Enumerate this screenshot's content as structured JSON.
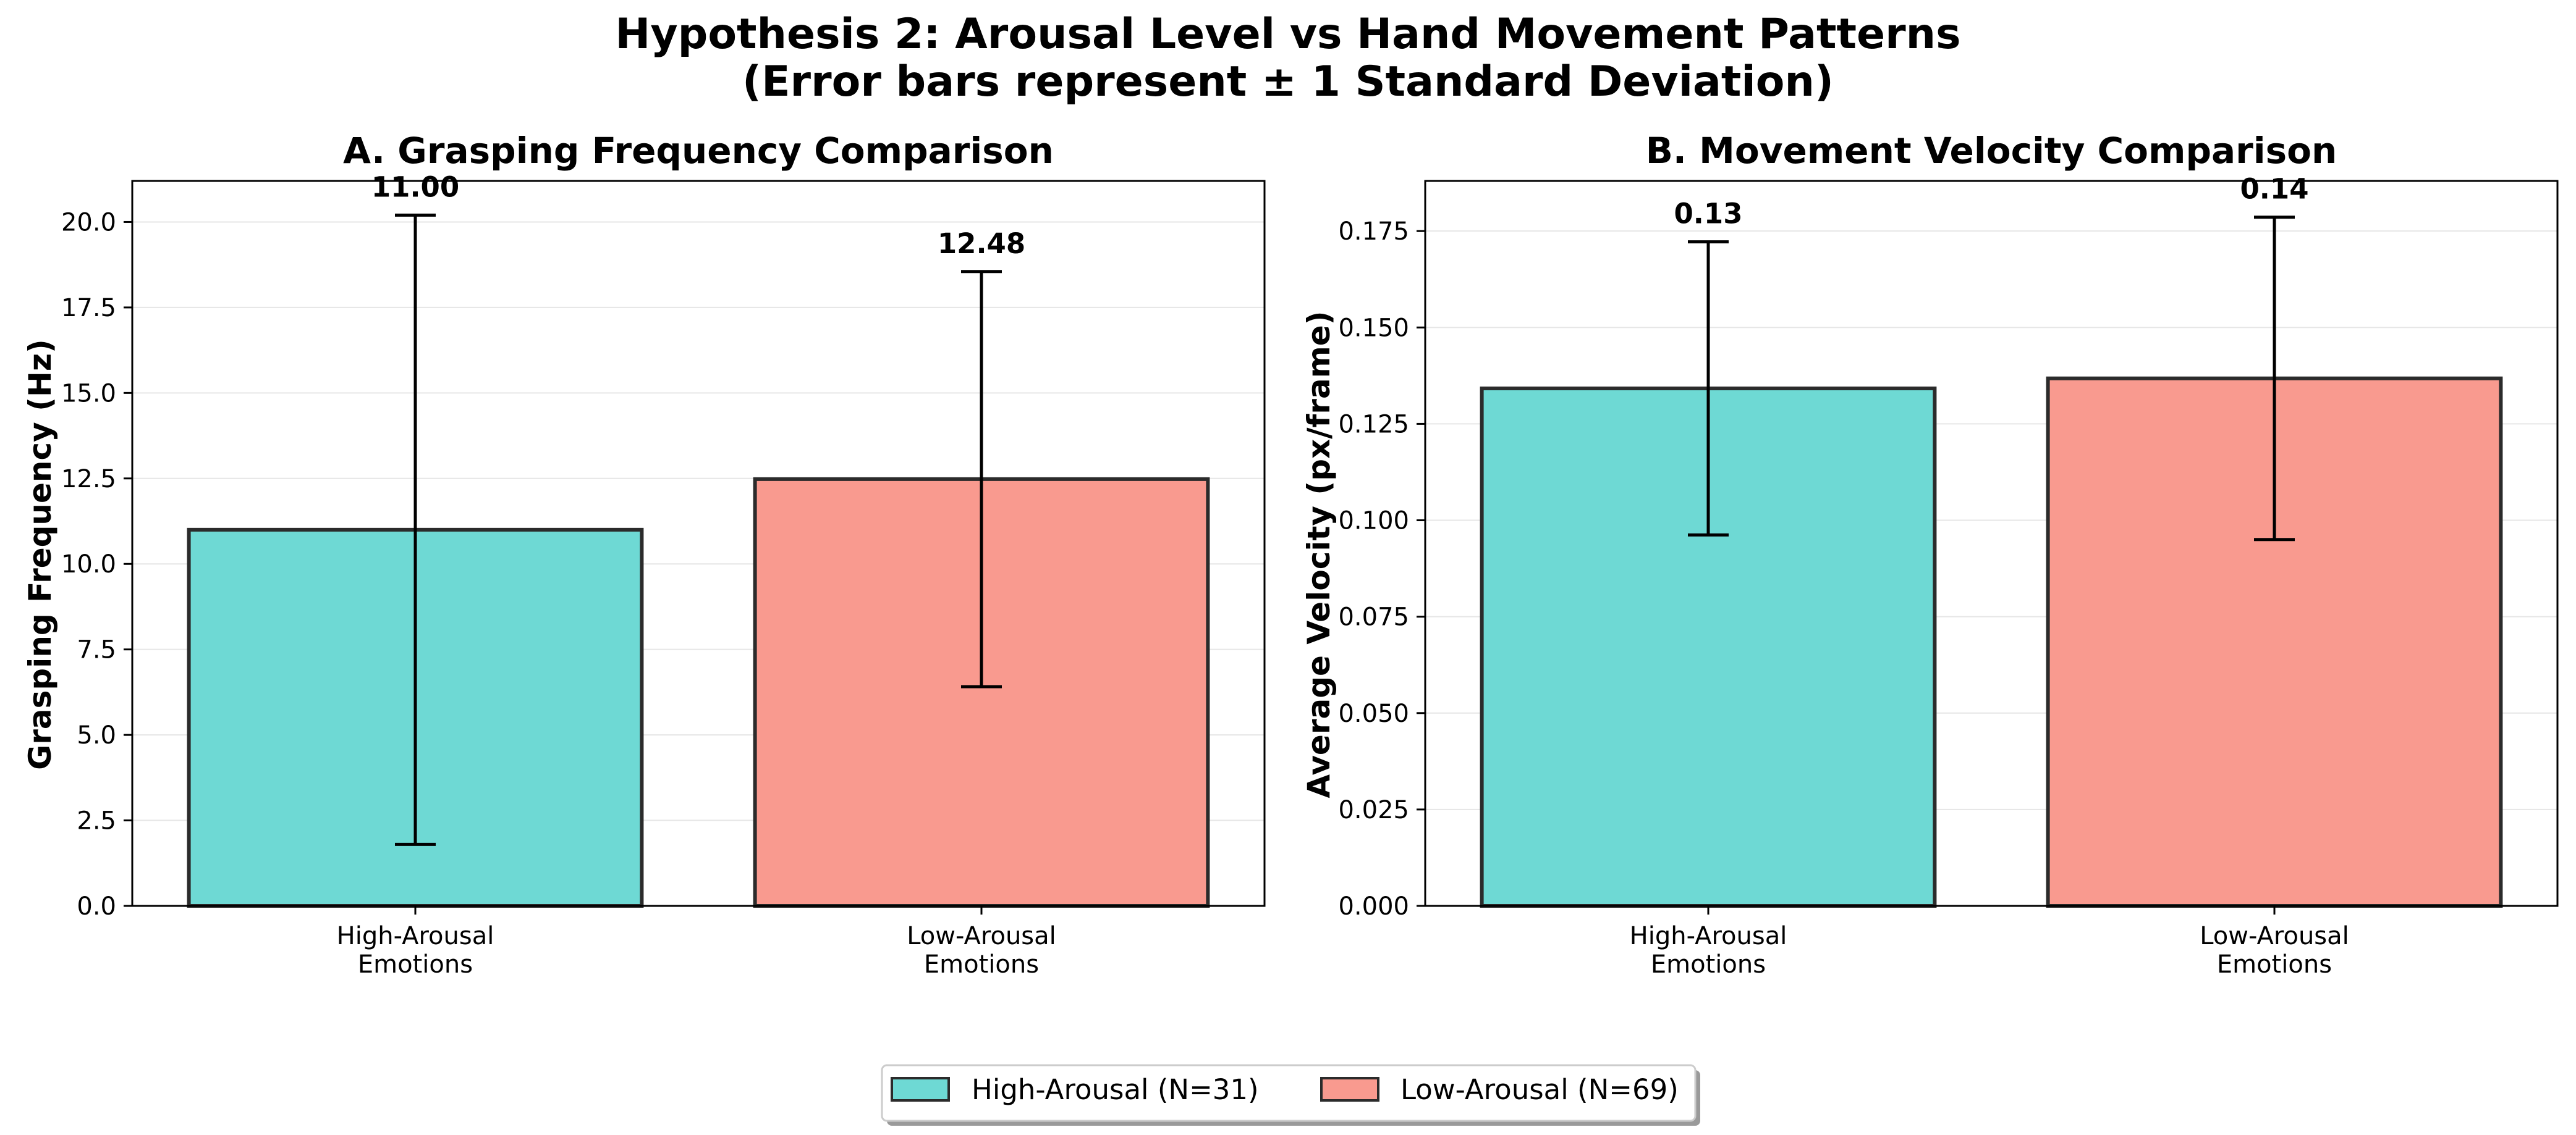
{
  "figure": {
    "title_line1": "Hypothesis 2: Arousal Level vs Hand Movement Patterns",
    "title_line2": "(Error bars represent ± 1 Standard Deviation)"
  },
  "colors": {
    "high_arousal": "#6ed9d4",
    "low_arousal": "#f99a8f",
    "bar_edge": "#2b2b2b",
    "grid": "#e6e6e6"
  },
  "legend": {
    "placement": "bottom-center",
    "items": [
      {
        "label": "High-Arousal (N=31)",
        "color": "#6ed9d4"
      },
      {
        "label": "Low-Arousal (N=69)",
        "color": "#f99a8f"
      }
    ]
  },
  "chart_data": [
    {
      "type": "bar",
      "title": "A. Grasping Frequency Comparison",
      "xlabel": "",
      "ylabel": "Grasping Frequency (Hz)",
      "categories": [
        [
          "High-Arousal",
          "Emotions"
        ],
        [
          "Low-Arousal",
          "Emotions"
        ]
      ],
      "values": [
        11.0,
        12.48
      ],
      "errors": [
        9.2,
        6.07
      ],
      "value_labels": [
        "11.00",
        "12.48"
      ],
      "ylim": [
        0,
        21.2
      ],
      "yticks": [
        0.0,
        2.5,
        5.0,
        7.5,
        10.0,
        12.5,
        15.0,
        17.5,
        20.0
      ],
      "ytick_labels": [
        "0.0",
        "2.5",
        "5.0",
        "7.5",
        "10.0",
        "12.5",
        "15.0",
        "17.5",
        "20.0"
      ],
      "grid": "y",
      "colors": [
        "#6ed9d4",
        "#f99a8f"
      ]
    },
    {
      "type": "bar",
      "title": "B. Movement Velocity Comparison",
      "xlabel": "",
      "ylabel": "Average Velocity (px/frame)",
      "categories": [
        [
          "High-Arousal",
          "Emotions"
        ],
        [
          "Low-Arousal",
          "Emotions"
        ]
      ],
      "values": [
        0.1342,
        0.1368
      ],
      "errors": [
        0.038,
        0.0418
      ],
      "value_labels": [
        "0.13",
        "0.14"
      ],
      "ylim": [
        0,
        0.188
      ],
      "yticks": [
        0.0,
        0.025,
        0.05,
        0.075,
        0.1,
        0.125,
        0.15,
        0.175
      ],
      "ytick_labels": [
        "0.000",
        "0.025",
        "0.050",
        "0.075",
        "0.100",
        "0.125",
        "0.150",
        "0.175"
      ],
      "grid": "y",
      "colors": [
        "#6ed9d4",
        "#f99a8f"
      ]
    }
  ]
}
